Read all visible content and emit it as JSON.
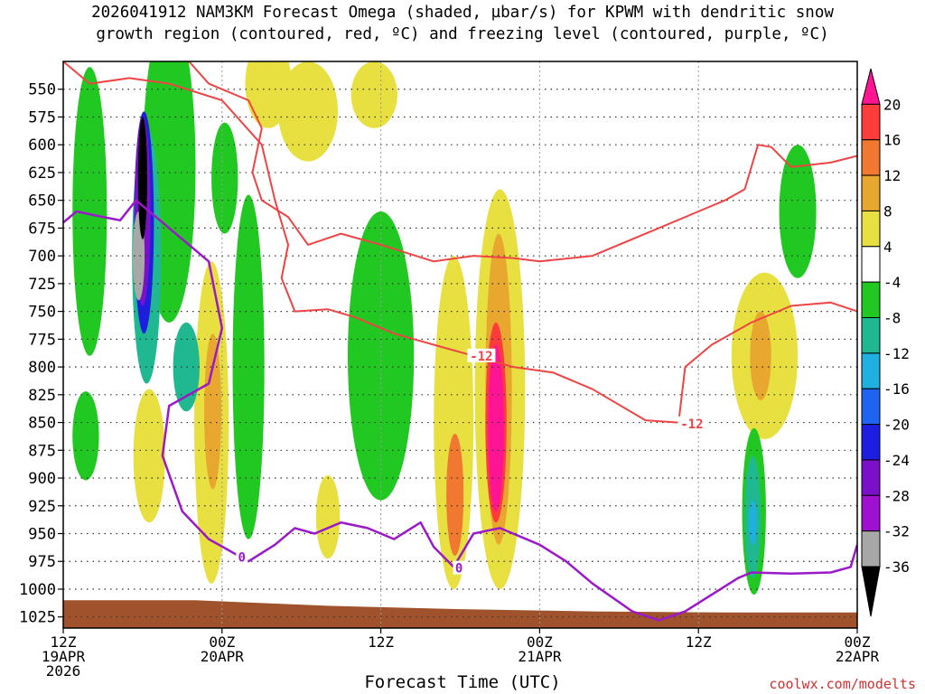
{
  "title": {
    "line1": "2026041912 NAM3KM Forecast Omega (shaded, µbar/s) for KPWM with dendritic snow",
    "line2": "growth region (contoured, red, ºC) and freezing level (contoured, purple, ºC)"
  },
  "xlabel": "Forecast Time (UTC)",
  "credit": "coolwx.com/modelts",
  "chart_data": {
    "type": "heatmap",
    "title": "2026041912 NAM3KM Forecast Omega (shaded, µbar/s) for KPWM with dendritic snow growth region (contoured, red, ºC) and freezing level (contoured, purple, ºC)",
    "xlabel": "Forecast Time (UTC)",
    "ylabel": "",
    "x_ticks": [
      {
        "hour": 0,
        "lines": [
          "12Z",
          "19APR",
          "2026"
        ]
      },
      {
        "hour": 12,
        "lines": [
          "00Z",
          "20APR"
        ]
      },
      {
        "hour": 24,
        "lines": [
          "12Z"
        ]
      },
      {
        "hour": 36,
        "lines": [
          "00Z",
          "21APR"
        ]
      },
      {
        "hour": 48,
        "lines": [
          "12Z"
        ]
      },
      {
        "hour": 60,
        "lines": [
          "00Z",
          "22APR"
        ]
      }
    ],
    "xlim_hours": [
      0,
      60
    ],
    "y_ticks": [
      "550",
      "575",
      "600",
      "625",
      "650",
      "675",
      "700",
      "725",
      "750",
      "775",
      "800",
      "825",
      "850",
      "875",
      "900",
      "925",
      "950",
      "975",
      "1000",
      "1025"
    ],
    "ylim_hpa": [
      525,
      1035
    ],
    "colorbar": {
      "labels": [
        "20",
        "16",
        "12",
        "8",
        "4",
        "-4",
        "-8",
        "-12",
        "-16",
        "-20",
        "-24",
        "-28",
        "-32",
        "-36"
      ],
      "colors": [
        "#ff1493",
        "#ff3c3c",
        "#f07830",
        "#e8a830",
        "#e8e040",
        "#ffffff",
        "#22c822",
        "#20b890",
        "#20b0e0",
        "#1e64f0",
        "#1e1ee0",
        "#7a10c8",
        "#a010d0",
        "#a8a8a8",
        "#000000"
      ]
    },
    "omega_regions": [
      {
        "level": "4",
        "color": "#e8e040",
        "center_hour": 1.5,
        "center_hpa": 712,
        "width_h": 1.4,
        "height_hpa": 56
      },
      {
        "level": "4",
        "color": "#e8e040",
        "center_hour": 6.5,
        "center_hpa": 880,
        "width_h": 2.4,
        "height_hpa": 120
      },
      {
        "level": "4",
        "color": "#e8e040",
        "center_hour": 11.2,
        "center_hpa": 850,
        "width_h": 2.6,
        "height_hpa": 290
      },
      {
        "level": "4",
        "color": "#e8e040",
        "center_hour": 15.5,
        "center_hpa": 545,
        "width_h": 3.5,
        "height_hpa": 80
      },
      {
        "level": "4",
        "color": "#e8e040",
        "center_hour": 18.5,
        "center_hpa": 570,
        "width_h": 4.5,
        "height_hpa": 90
      },
      {
        "level": "4",
        "color": "#e8e040",
        "center_hour": 23.5,
        "center_hpa": 555,
        "width_h": 3.5,
        "height_hpa": 60
      },
      {
        "level": "4",
        "color": "#e8e040",
        "center_hour": 20.0,
        "center_hpa": 935,
        "width_h": 1.8,
        "height_hpa": 75
      },
      {
        "level": "4",
        "color": "#e8e040",
        "center_hour": 29.5,
        "center_hpa": 850,
        "width_h": 3.0,
        "height_hpa": 300
      },
      {
        "level": "4",
        "color": "#e8e040",
        "center_hour": 33.0,
        "center_hpa": 820,
        "width_h": 3.8,
        "height_hpa": 360
      },
      {
        "level": "4",
        "color": "#e8e040",
        "center_hour": 53.0,
        "center_hpa": 790,
        "width_h": 5.0,
        "height_hpa": 150
      },
      {
        "level": "8",
        "color": "#e8a830",
        "center_hour": 11.3,
        "center_hpa": 840,
        "width_h": 1.3,
        "height_hpa": 140
      },
      {
        "level": "8",
        "color": "#e8a830",
        "center_hour": 32.9,
        "center_hpa": 820,
        "width_h": 2.0,
        "height_hpa": 280
      },
      {
        "level": "8",
        "color": "#e8a830",
        "center_hour": 52.7,
        "center_hpa": 790,
        "width_h": 1.6,
        "height_hpa": 80
      },
      {
        "level": "12",
        "color": "#f07830",
        "center_hour": 29.6,
        "center_hpa": 915,
        "width_h": 1.3,
        "height_hpa": 110
      },
      {
        "level": "16",
        "color": "#ff3c3c",
        "center_hour": 32.7,
        "center_hpa": 850,
        "width_h": 1.6,
        "height_hpa": 180
      },
      {
        "level": "20",
        "color": "#ff1493",
        "center_hour": 32.7,
        "center_hpa": 855,
        "width_h": 1.2,
        "height_hpa": 150
      },
      {
        "level": "-4",
        "color": "#22c822",
        "center_hour": 2.0,
        "center_hpa": 660,
        "width_h": 2.6,
        "height_hpa": 260
      },
      {
        "level": "-4",
        "color": "#22c822",
        "center_hour": 1.7,
        "center_hpa": 862,
        "width_h": 2.0,
        "height_hpa": 80
      },
      {
        "level": "-4",
        "color": "#22c822",
        "center_hour": 8.0,
        "center_hpa": 620,
        "width_h": 4.0,
        "height_hpa": 280
      },
      {
        "level": "-4",
        "color": "#22c822",
        "center_hour": 12.2,
        "center_hpa": 630,
        "width_h": 2.0,
        "height_hpa": 100
      },
      {
        "level": "-4",
        "color": "#22c822",
        "center_hour": 14.0,
        "center_hpa": 800,
        "width_h": 2.4,
        "height_hpa": 310
      },
      {
        "level": "-4",
        "color": "#22c822",
        "center_hour": 24.0,
        "center_hpa": 790,
        "width_h": 5.0,
        "height_hpa": 260
      },
      {
        "level": "-4",
        "color": "#22c822",
        "center_hour": 55.5,
        "center_hpa": 660,
        "width_h": 2.8,
        "height_hpa": 120
      },
      {
        "level": "-4",
        "color": "#22c822",
        "center_hour": 52.2,
        "center_hpa": 930,
        "width_h": 1.8,
        "height_hpa": 150
      },
      {
        "level": "-12",
        "color": "#20b890",
        "center_hour": 6.3,
        "center_hpa": 700,
        "width_h": 2.2,
        "height_hpa": 230
      },
      {
        "level": "-12",
        "color": "#20b890",
        "center_hour": 9.3,
        "center_hpa": 800,
        "width_h": 2.0,
        "height_hpa": 80
      },
      {
        "level": "-12",
        "color": "#20b890",
        "center_hour": 52.1,
        "center_hpa": 935,
        "width_h": 1.2,
        "height_hpa": 110
      },
      {
        "level": "-16",
        "color": "#20b0e0",
        "center_hour": 52.1,
        "center_hpa": 940,
        "width_h": 0.6,
        "height_hpa": 40
      },
      {
        "level": "-24",
        "color": "#1e1ee0",
        "center_hour": 6.1,
        "center_hpa": 670,
        "width_h": 1.5,
        "height_hpa": 200
      },
      {
        "level": "-28",
        "color": "#7a10c8",
        "center_hour": 6.0,
        "center_hpa": 660,
        "width_h": 1.2,
        "height_hpa": 170
      },
      {
        "level": "-32",
        "color": "#a8a8a8",
        "center_hour": 5.7,
        "center_hpa": 700,
        "width_h": 0.9,
        "height_hpa": 80
      },
      {
        "level": "-36",
        "color": "#000000",
        "center_hour": 6.0,
        "center_hpa": 630,
        "width_h": 0.7,
        "height_hpa": 110
      }
    ],
    "dgz_upper_line": {
      "label": "-12",
      "color": "#ee4444",
      "points": [
        [
          9.5,
          525
        ],
        [
          11,
          545
        ],
        [
          14,
          560
        ],
        [
          15,
          585
        ],
        [
          14.3,
          625
        ],
        [
          15,
          650
        ],
        [
          17,
          665
        ],
        [
          18.5,
          690
        ],
        [
          21,
          680
        ],
        [
          24,
          690
        ],
        [
          28,
          705
        ],
        [
          31,
          700
        ],
        [
          34,
          702
        ],
        [
          36,
          705
        ],
        [
          40,
          700
        ],
        [
          44,
          680
        ],
        [
          48,
          660
        ],
        [
          50,
          650
        ],
        [
          51.5,
          640
        ],
        [
          52.5,
          600
        ],
        [
          53.5,
          602
        ],
        [
          55,
          620
        ],
        [
          58,
          616
        ],
        [
          60,
          610
        ]
      ]
    },
    "dgz_lower_line": {
      "label": "-12",
      "color": "#ee4444",
      "points": [
        [
          0,
          525
        ],
        [
          2,
          545
        ],
        [
          5,
          540
        ],
        [
          8,
          545
        ],
        [
          12,
          560
        ],
        [
          15,
          600
        ],
        [
          16,
          650
        ],
        [
          17,
          690
        ],
        [
          16.5,
          720
        ],
        [
          17.5,
          750
        ],
        [
          20,
          748
        ],
        [
          22,
          755
        ],
        [
          25,
          770
        ],
        [
          28,
          780
        ],
        [
          31,
          790
        ],
        [
          34,
          800
        ],
        [
          37,
          805
        ],
        [
          40,
          820
        ],
        [
          44,
          848
        ],
        [
          46.5,
          850
        ],
        [
          47,
          800
        ],
        [
          49,
          780
        ],
        [
          52,
          760
        ],
        [
          55,
          745
        ],
        [
          58,
          742
        ],
        [
          60,
          750
        ]
      ]
    },
    "freezing_line": {
      "label": "0",
      "color": "#9b19c8",
      "points": [
        [
          0,
          670
        ],
        [
          1,
          660
        ],
        [
          3,
          665
        ],
        [
          4.3,
          668
        ],
        [
          5.5,
          650
        ],
        [
          7,
          665
        ],
        [
          9,
          685
        ],
        [
          11,
          705
        ],
        [
          12,
          765
        ],
        [
          11,
          815
        ],
        [
          8,
          835
        ],
        [
          7.5,
          880
        ],
        [
          9,
          930
        ],
        [
          11,
          955
        ],
        [
          14,
          975
        ],
        [
          16,
          960
        ],
        [
          17.5,
          945
        ],
        [
          19,
          950
        ],
        [
          21,
          940
        ],
        [
          23,
          945
        ],
        [
          25,
          955
        ],
        [
          27,
          940
        ],
        [
          28,
          962
        ],
        [
          29.5,
          980
        ],
        [
          31,
          950
        ],
        [
          33,
          945
        ],
        [
          36,
          960
        ],
        [
          38,
          975
        ],
        [
          40,
          995
        ],
        [
          43,
          1020
        ],
        [
          45,
          1028
        ],
        [
          47,
          1020
        ],
        [
          49,
          1005
        ],
        [
          51,
          990
        ],
        [
          52,
          985
        ],
        [
          55,
          986
        ],
        [
          58,
          985
        ],
        [
          59.5,
          980
        ],
        [
          60,
          960
        ]
      ]
    },
    "terrain": {
      "color": "#a0522d",
      "points_hpa": [
        [
          0,
          1010
        ],
        [
          10,
          1010
        ],
        [
          20,
          1015
        ],
        [
          30,
          1018
        ],
        [
          40,
          1020
        ],
        [
          50,
          1021
        ],
        [
          60,
          1021
        ]
      ]
    },
    "line_labels": [
      {
        "text": "-12",
        "hour": 31.6,
        "hpa": 790,
        "color": "#ee4444"
      },
      {
        "text": "-12",
        "hour": 47.5,
        "hpa": 851,
        "color": "#ee4444"
      },
      {
        "text": "0",
        "hour": 13.5,
        "hpa": 971,
        "color": "#9b19c8"
      },
      {
        "text": "0",
        "hour": 29.9,
        "hpa": 981,
        "color": "#9b19c8"
      }
    ]
  }
}
